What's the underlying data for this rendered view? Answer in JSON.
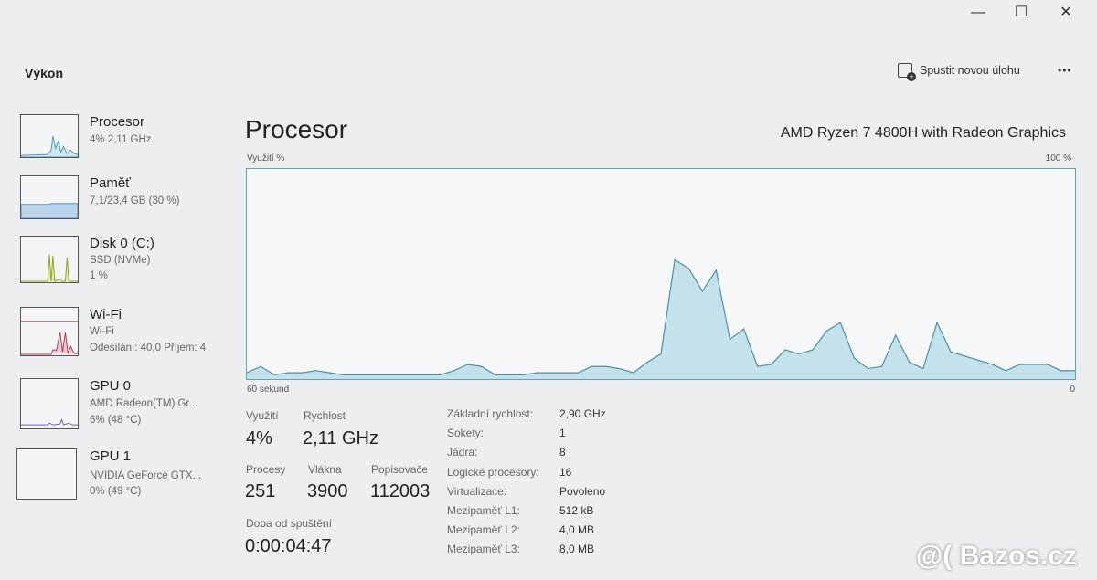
{
  "window": {
    "minimize": "—",
    "maximize": "☐",
    "close": "✕"
  },
  "sidebar": {
    "title": "Výkon",
    "items": [
      {
        "title": "Procesor",
        "line1": "4% 2,11 GHz",
        "color": "#4a9bb5"
      },
      {
        "title": "Paměť",
        "line1": "7,1/23,4 GB (30 %)",
        "color": "#5b8fc7"
      },
      {
        "title": "Disk 0 (C:)",
        "line1": "SSD (NVMe)",
        "line2": "1 %",
        "color": "#8aa61e"
      },
      {
        "title": "Wi-Fi",
        "line1": "Wi-Fi",
        "line2": "Odesílání: 40,0 Příjem: 4",
        "color": "#b0394f"
      },
      {
        "title": "GPU 0",
        "line1": "AMD Radeon(TM) Gr...",
        "line2": "6% (48 °C)",
        "color": "#6b5fc7"
      },
      {
        "title": "GPU 1",
        "line1": "NVIDIA GeForce GTX...",
        "line2": "0% (49 °C)",
        "color": "#6b5fc7"
      }
    ]
  },
  "toolbar": {
    "run_task": "Spustit novou úlohu",
    "more": "•••",
    "run_task_icon": "new-task-icon"
  },
  "main": {
    "title": "Procesor",
    "cpu_name": "AMD Ryzen 7 4800H with Radeon Graphics",
    "stats": {
      "utilization_label": "Využití",
      "utilization": "4%",
      "speed_label": "Rychlost",
      "speed": "2,11 GHz",
      "processes_label": "Procesy",
      "processes": "251",
      "threads_label": "Vlákna",
      "threads": "3900",
      "handles_label": "Popisovače",
      "handles": "112003",
      "uptime_label": "Doba od spuštění",
      "uptime": "0:00:04:47"
    },
    "specs": [
      {
        "k": "Základní rychlost:",
        "v": "2,90 GHz"
      },
      {
        "k": "Sokety:",
        "v": "1"
      },
      {
        "k": "Jádra:",
        "v": "8"
      },
      {
        "k": "Logické procesory:",
        "v": "16"
      },
      {
        "k": "Virtualizace:",
        "v": "Povoleno"
      },
      {
        "k": "Mezipaměť L1:",
        "v": "512 kB"
      },
      {
        "k": "Mezipaměť L2:",
        "v": "4,0 MB"
      },
      {
        "k": "Mezipaměť L3:",
        "v": "8,0 MB"
      }
    ]
  },
  "watermark": "@( Bazos.cz",
  "chart_data": {
    "type": "area",
    "ylabel": "Využití %",
    "ymax_label": "100 %",
    "xmin_label": "60 sekund",
    "xmax_label": "0",
    "ylim": [
      0,
      100
    ],
    "xlim": [
      60,
      0
    ],
    "fill": "#c3e2ec",
    "stroke": "#4b8fa6",
    "values": [
      3,
      6,
      2,
      3,
      3,
      4,
      3,
      2,
      2,
      2,
      2,
      2,
      2,
      2,
      2,
      4,
      7,
      6,
      2,
      2,
      2,
      3,
      3,
      3,
      3,
      6,
      6,
      5,
      3,
      8,
      12,
      57,
      53,
      42,
      52,
      19,
      24,
      6,
      7,
      14,
      12,
      14,
      23,
      27,
      10,
      5,
      6,
      21,
      8,
      5,
      27,
      13,
      11,
      9,
      7,
      4,
      7,
      7,
      7,
      4,
      4
    ]
  }
}
